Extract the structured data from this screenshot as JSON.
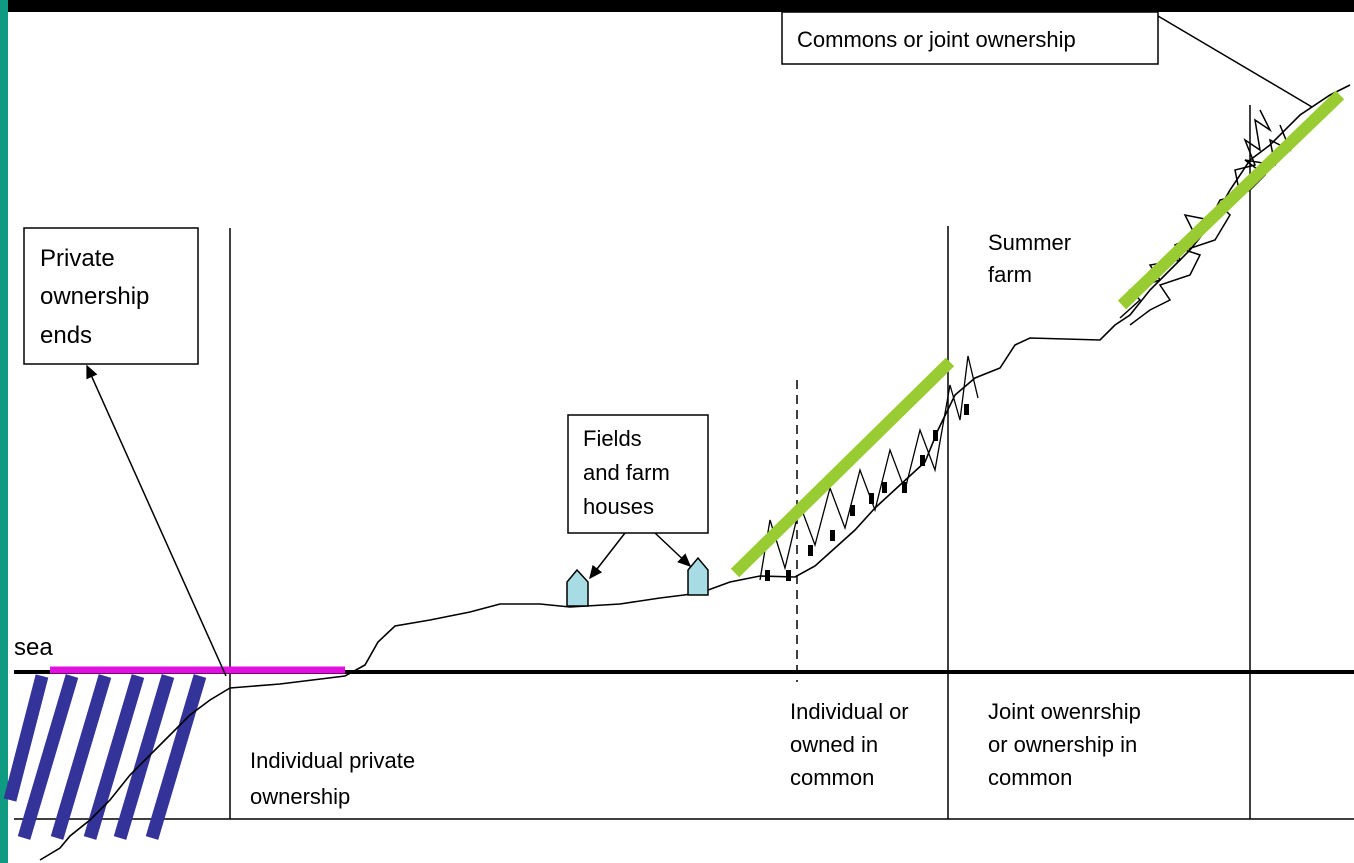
{
  "commons_box": {
    "lines": [
      "Commons or joint ownership"
    ]
  },
  "private_box": {
    "lines": [
      "Private",
      "ownership",
      "ends"
    ]
  },
  "summer_farm": {
    "lines": [
      "Summer",
      "farm"
    ]
  },
  "fields_box": {
    "lines": [
      "Fields",
      "and farm",
      "houses"
    ]
  },
  "sea": {
    "lines": [
      "sea"
    ]
  },
  "zone_individual_private": {
    "lines": [
      "Individual private",
      "ownership"
    ]
  },
  "zone_individual_common": {
    "lines": [
      "Individual or",
      "owned in",
      "common"
    ]
  },
  "zone_joint": {
    "lines": [
      "Joint owenrship",
      "or ownership in",
      "common"
    ]
  }
}
